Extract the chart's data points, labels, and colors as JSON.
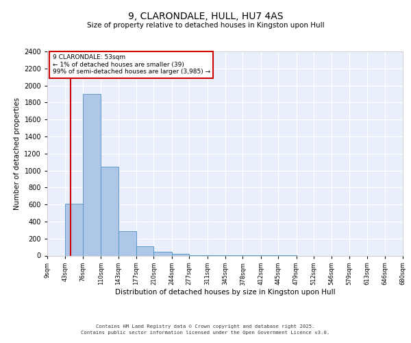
{
  "title": "9, CLARONDALE, HULL, HU7 4AS",
  "subtitle": "Size of property relative to detached houses in Kingston upon Hull",
  "xlabel": "Distribution of detached houses by size in Kingston upon Hull",
  "ylabel": "Number of detached properties",
  "bin_edges": [
    9,
    43,
    76,
    110,
    143,
    177,
    210,
    244,
    277,
    311,
    345,
    378,
    412,
    445,
    479,
    512,
    546,
    579,
    613,
    646,
    680
  ],
  "bar_heights": [
    0,
    610,
    1900,
    1045,
    290,
    110,
    42,
    18,
    8,
    5,
    3,
    2,
    1,
    1,
    0,
    0,
    0,
    0,
    0,
    0
  ],
  "bar_color": "#aec6e8",
  "bar_edge_color": "#4a90c4",
  "red_line_x": 53,
  "annotation_title": "9 CLARONDALE: 53sqm",
  "annotation_line1": "← 1% of detached houses are smaller (39)",
  "annotation_line2": "99% of semi-detached houses are larger (3,985) →",
  "annotation_box_color": "#ffffff",
  "annotation_box_edge_color": "#cc0000",
  "tick_labels": [
    "9sqm",
    "43sqm",
    "76sqm",
    "110sqm",
    "143sqm",
    "177sqm",
    "210sqm",
    "244sqm",
    "277sqm",
    "311sqm",
    "345sqm",
    "378sqm",
    "412sqm",
    "445sqm",
    "479sqm",
    "512sqm",
    "546sqm",
    "579sqm",
    "613sqm",
    "646sqm",
    "680sqm"
  ],
  "ylim": [
    0,
    2400
  ],
  "yticks": [
    0,
    200,
    400,
    600,
    800,
    1000,
    1200,
    1400,
    1600,
    1800,
    2000,
    2200,
    2400
  ],
  "bg_color": "#eaf0fb",
  "grid_color": "#ffffff",
  "footer_line1": "Contains HM Land Registry data © Crown copyright and database right 2025.",
  "footer_line2": "Contains public sector information licensed under the Open Government Licence v3.0."
}
